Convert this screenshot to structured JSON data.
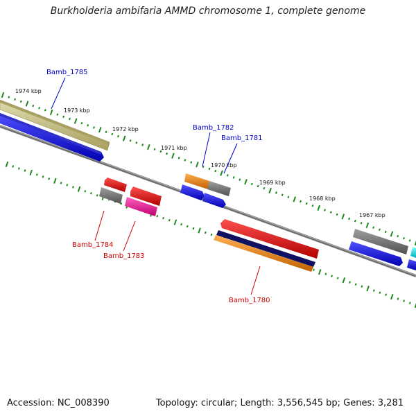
{
  "title": "Burkholderia ambifaria AMMD chromosome 1, complete genome",
  "footer": {
    "accession": "Accession: NC_008390",
    "summary": "Topology: circular; Length: 3,556,545 bp; Genes: 3,281"
  },
  "ruler_labels": [
    "1974 kbp",
    "1973 kbp",
    "1972 kbp",
    "1971 kbp",
    "1970 kbp",
    "1969 kbp",
    "1968 kbp",
    "1967 kbp"
  ],
  "gene_labels": {
    "bamb_1785": "Bamb_1785",
    "bamb_1782": "Bamb_1782",
    "bamb_1781": "Bamb_1781",
    "bamb_1784": "Bamb_1784",
    "bamb_1783": "Bamb_1783",
    "bamb_1780": "Bamb_1780"
  },
  "colors": {
    "backbone": "#808080",
    "tick": "#1a8a1a",
    "olive": "#c8c08a",
    "blue": "#1010ee",
    "red": "#ee0000",
    "gray": "#707070",
    "orange": "#f08a10",
    "pink": "#f020a0",
    "navy": "#101060",
    "cyan": "#20e8f0",
    "label_blue": "#0000cc",
    "label_red": "#cc0000"
  }
}
